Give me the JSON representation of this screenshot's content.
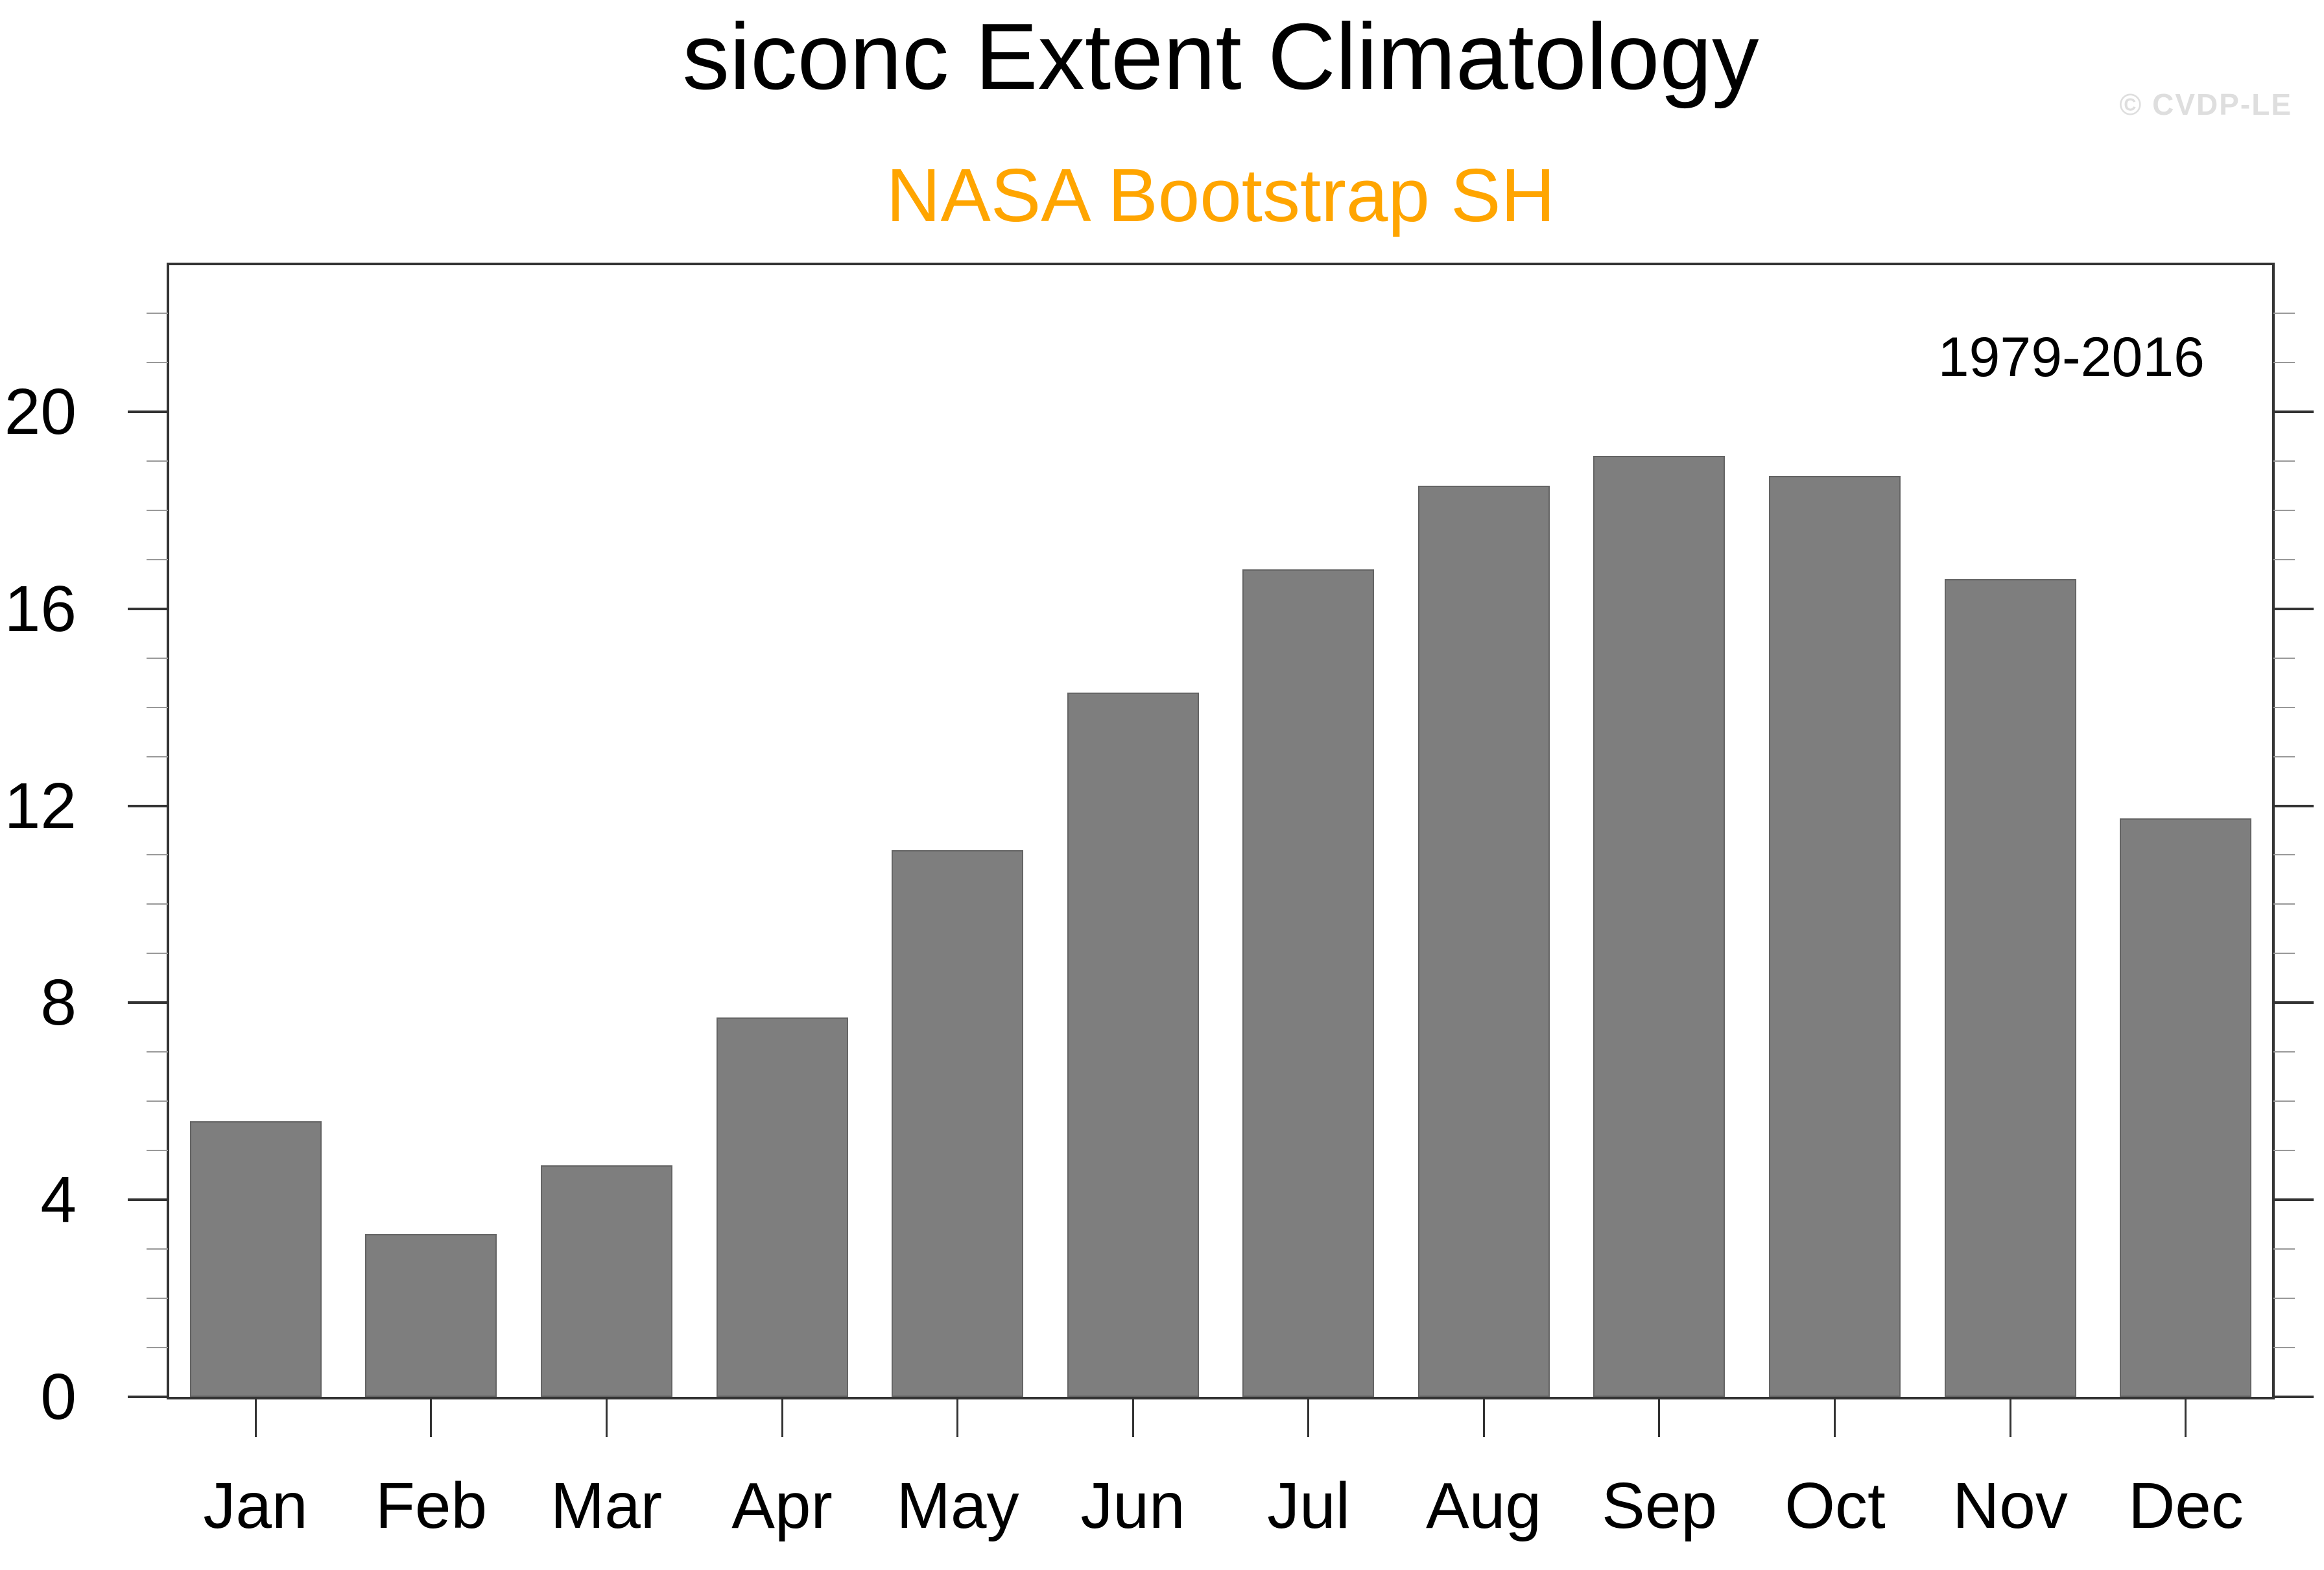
{
  "header": {
    "title": "siconc Extent Climatology",
    "subtitle": "NASA Bootstrap SH",
    "watermark": "© CVDP-LE",
    "period_label": "1979-2016"
  },
  "colors": {
    "subtitle": "#FFA500",
    "watermark": "#DEDEDE",
    "bar_fill": "#7E7E7E",
    "bar_border": "#646464",
    "axis": "#333333",
    "minor_tick": "#999999"
  },
  "chart_data": {
    "type": "bar",
    "title": "siconc Extent Climatology",
    "subtitle": "NASA Bootstrap SH",
    "annotation": "1979-2016",
    "categories": [
      "Jan",
      "Feb",
      "Mar",
      "Apr",
      "May",
      "Jun",
      "Jul",
      "Aug",
      "Sep",
      "Oct",
      "Nov",
      "Dec"
    ],
    "values": [
      5.6,
      3.3,
      4.7,
      7.7,
      11.1,
      14.3,
      16.8,
      18.5,
      19.1,
      18.7,
      16.6,
      11.75
    ],
    "xlabel": "",
    "ylabel": "",
    "ylim": [
      0,
      23
    ],
    "yticks_major": [
      0,
      4,
      8,
      12,
      16,
      20
    ],
    "minor_tick_interval": 1,
    "grid": false,
    "legend": null,
    "bar_color": "#7E7E7E"
  }
}
